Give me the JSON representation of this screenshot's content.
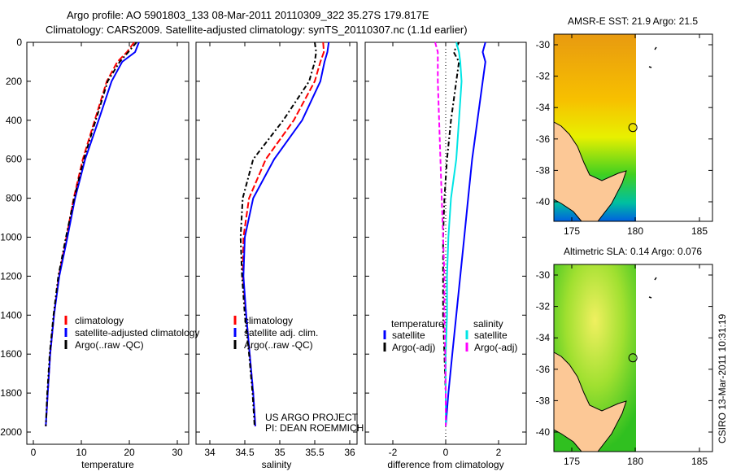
{
  "title_line1": "Argo profile: AO 5901803_133 08-Mar-2011 20110309_322 35.27S 179.817E",
  "title_line2": "Climatology: CARS2009. Satellite-adjusted climatology: synTS_20110307.nc (1.1d earlier)",
  "footer_vertical": "CSIRO 13-Mar-2011 10:31:19",
  "project_line1": "US ARGO PROJECT",
  "project_line2": "PI: DEAN ROEMMICH",
  "colors": {
    "climatology": "#ff0000",
    "satellite": "#0000ff",
    "argo": "#000000",
    "sal_satellite": "#00e5e5",
    "sal_argo": "#ff00ff"
  },
  "chart_data": [
    {
      "type": "line",
      "xlabel": "temperature",
      "ylabel": "",
      "xlim": [
        -2,
        32
      ],
      "ylim": [
        2000,
        0
      ],
      "xticks": [
        "0",
        "10",
        "20",
        "30"
      ],
      "yticks": [
        "0",
        "200",
        "400",
        "600",
        "800",
        "1000",
        "1200",
        "1400",
        "1600",
        "1800",
        "2000"
      ],
      "depth": [
        0,
        50,
        100,
        200,
        400,
        600,
        800,
        1000,
        1200,
        1400,
        1600,
        1800,
        1970
      ],
      "legend": [
        "climatology",
        "satellite-adjusted climatology",
        "Argo(..raw -QC)"
      ],
      "series": [
        {
          "name": "climatology",
          "color": "#ff0000",
          "values": [
            21.0,
            19.5,
            17.5,
            15.3,
            12.8,
            10.3,
            8.4,
            6.9,
            5.3,
            4.3,
            3.5,
            3.0,
            2.6
          ]
        },
        {
          "name": "satellite-adjusted climatology",
          "color": "#0000ff",
          "values": [
            22.0,
            21.2,
            18.5,
            16.3,
            13.6,
            10.8,
            8.7,
            7.1,
            5.4,
            4.3,
            3.5,
            3.0,
            2.6
          ]
        },
        {
          "name": "Argo(..raw -QC)",
          "color": "#000000",
          "values": [
            21.5,
            19.8,
            18.0,
            15.5,
            13.0,
            10.5,
            8.5,
            6.8,
            5.2,
            4.2,
            3.4,
            2.9,
            2.6
          ]
        }
      ]
    },
    {
      "type": "line",
      "xlabel": "salinity",
      "xlim": [
        33.8,
        36.1
      ],
      "ylim": [
        2000,
        0
      ],
      "xticks": [
        "34",
        "34.5",
        "35",
        "35.5",
        "36"
      ],
      "depth": [
        0,
        50,
        100,
        200,
        400,
        600,
        800,
        1000,
        1200,
        1400,
        1600,
        1800,
        1970
      ],
      "legend": [
        "climatology",
        "satellite adj. clim.",
        "Argo(..raw -QC)"
      ],
      "series": [
        {
          "name": "climatology",
          "color": "#ff0000",
          "values": [
            35.62,
            35.63,
            35.58,
            35.5,
            35.2,
            34.8,
            34.56,
            34.48,
            34.47,
            34.52,
            34.57,
            34.62,
            34.65
          ]
        },
        {
          "name": "satellite adj. clim.",
          "color": "#0000ff",
          "values": [
            35.7,
            35.68,
            35.64,
            35.58,
            35.32,
            34.92,
            34.62,
            34.5,
            34.48,
            34.52,
            34.57,
            34.62,
            34.65
          ]
        },
        {
          "name": "Argo(..raw -QC)",
          "color": "#000000",
          "values": [
            35.5,
            35.52,
            35.5,
            35.42,
            35.05,
            34.62,
            34.47,
            34.44,
            34.46,
            34.5,
            34.56,
            34.61,
            34.64
          ]
        }
      ]
    },
    {
      "type": "line",
      "xlabel": "difference from climatology",
      "xlim": [
        -3,
        3
      ],
      "ylim": [
        2000,
        0
      ],
      "xticks": [
        "-2",
        "0",
        "2"
      ],
      "depth": [
        0,
        50,
        100,
        200,
        400,
        600,
        800,
        1000,
        1200,
        1400,
        1600,
        1800,
        1970
      ],
      "legend_temperature_title": "temperature",
      "legend_salinity_title": "salinity",
      "series": [
        {
          "name": "satellite",
          "group": "temperature",
          "color": "#0000ff",
          "values": [
            1.5,
            1.4,
            1.5,
            1.4,
            1.2,
            1.0,
            0.85,
            0.7,
            0.55,
            0.4,
            0.25,
            0.1,
            0.0
          ]
        },
        {
          "name": "Argo(-adj)",
          "group": "temperature",
          "color": "#000000",
          "values": [
            0.5,
            0.3,
            0.5,
            0.4,
            0.2,
            0.05,
            -0.05,
            -0.1,
            -0.1,
            -0.1,
            -0.05,
            0.0,
            0.0
          ]
        },
        {
          "name": "satellite",
          "group": "salinity",
          "color": "#00e5e5",
          "values": [
            0.4,
            0.5,
            0.55,
            0.6,
            0.5,
            0.4,
            0.2,
            0.1,
            0.05,
            0.05,
            0.0,
            0.0,
            0.0
          ]
        },
        {
          "name": "Argo(-adj)",
          "group": "salinity",
          "color": "#ff00ff",
          "values": [
            -0.4,
            -0.3,
            -0.3,
            -0.3,
            -0.25,
            -0.2,
            -0.15,
            -0.1,
            -0.05,
            -0.05,
            -0.02,
            0.0,
            0.0
          ]
        }
      ]
    },
    {
      "type": "heatmap",
      "title": "AMSR-E SST: 21.9 Argo: 21.5",
      "xticks": [
        "175",
        "180",
        "185"
      ],
      "yticks": [
        "-30",
        "-32",
        "-34",
        "-36",
        "-38",
        "-40"
      ],
      "float_position": {
        "lon": 179.817,
        "lat": -35.27
      }
    },
    {
      "type": "heatmap",
      "title": "Altimetric SLA: 0.14 Argo: 0.076",
      "xticks": [
        "175",
        "180",
        "185"
      ],
      "yticks": [
        "-30",
        "-32",
        "-34",
        "-36",
        "-38",
        "-40"
      ],
      "float_position": {
        "lon": 179.817,
        "lat": -35.27
      }
    }
  ]
}
